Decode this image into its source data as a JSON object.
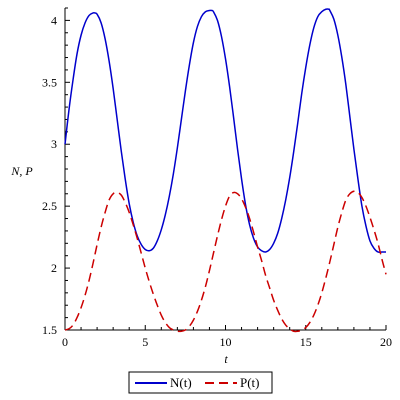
{
  "chart_data": {
    "type": "line",
    "xlabel": "t",
    "ylabel": "N, P",
    "xlim": [
      0,
      20
    ],
    "ylim": [
      1.5,
      4.1
    ],
    "x_ticks": [
      "0",
      "5",
      "10",
      "15",
      "20"
    ],
    "y_ticks": [
      "1.5",
      "2",
      "2.5",
      "3",
      "3.5",
      "4"
    ],
    "grid": false,
    "legend_position": "bottom",
    "series": [
      {
        "name": "N(t)",
        "color": "#0000cc",
        "dash": "solid",
        "x": [
          0,
          0.25,
          0.5,
          0.75,
          1,
          1.25,
          1.5,
          1.75,
          1.85,
          2,
          2.25,
          2.5,
          2.75,
          3,
          3.25,
          3.5,
          3.75,
          4,
          4.25,
          4.5,
          4.75,
          5,
          5.25,
          5.5,
          5.75,
          6,
          6.25,
          6.5,
          6.75,
          7,
          7.25,
          7.5,
          7.75,
          8,
          8.25,
          8.5,
          8.75,
          9,
          9.15,
          9.25,
          9.5,
          9.75,
          10,
          10.25,
          10.5,
          10.75,
          11,
          11.25,
          11.5,
          11.75,
          12,
          12.25,
          12.5,
          12.75,
          13,
          13.25,
          13.5,
          13.75,
          14,
          14.25,
          14.5,
          14.75,
          15,
          15.25,
          15.5,
          15.75,
          16,
          16.25,
          16.45,
          16.5,
          16.75,
          17,
          17.25,
          17.5,
          17.75,
          18,
          18.25,
          18.5,
          18.75,
          19,
          19.25,
          19.5,
          19.75,
          20
        ],
        "y": [
          3.0,
          3.28,
          3.52,
          3.73,
          3.88,
          3.98,
          4.04,
          4.06,
          4.06,
          4.05,
          3.98,
          3.85,
          3.67,
          3.45,
          3.2,
          2.95,
          2.72,
          2.52,
          2.37,
          2.26,
          2.19,
          2.15,
          2.14,
          2.16,
          2.22,
          2.31,
          2.43,
          2.58,
          2.76,
          2.97,
          3.2,
          3.43,
          3.64,
          3.82,
          3.95,
          4.03,
          4.07,
          4.08,
          4.08,
          4.07,
          4.0,
          3.87,
          3.69,
          3.47,
          3.22,
          2.96,
          2.72,
          2.51,
          2.35,
          2.24,
          2.17,
          2.14,
          2.13,
          2.15,
          2.2,
          2.28,
          2.4,
          2.55,
          2.73,
          2.94,
          3.17,
          3.41,
          3.62,
          3.8,
          3.94,
          4.03,
          4.07,
          4.09,
          4.09,
          4.08,
          4.01,
          3.88,
          3.7,
          3.48,
          3.22,
          2.96,
          2.72,
          2.5,
          2.34,
          2.22,
          2.16,
          2.13,
          2.13,
          2.13
        ]
      },
      {
        "name": "P(t)",
        "color": "#cc0000",
        "dash": "dashed",
        "x": [
          0,
          0.25,
          0.5,
          0.75,
          1,
          1.25,
          1.5,
          1.75,
          2,
          2.25,
          2.5,
          2.75,
          3,
          3.25,
          3.5,
          3.75,
          4,
          4.25,
          4.5,
          4.75,
          5,
          5.25,
          5.5,
          5.75,
          6,
          6.25,
          6.5,
          6.75,
          7,
          7.25,
          7.5,
          7.75,
          8,
          8.25,
          8.5,
          8.75,
          9,
          9.25,
          9.5,
          9.75,
          10,
          10.25,
          10.5,
          10.75,
          11,
          11.25,
          11.5,
          11.75,
          12,
          12.25,
          12.5,
          12.75,
          13,
          13.25,
          13.5,
          13.75,
          14,
          14.25,
          14.5,
          14.75,
          15,
          15.25,
          15.5,
          15.75,
          16,
          16.25,
          16.5,
          16.75,
          17,
          17.25,
          17.5,
          17.75,
          18,
          18.25,
          18.5,
          18.75,
          19,
          19.25,
          19.5,
          19.75,
          20
        ],
        "y": [
          1.5,
          1.51,
          1.54,
          1.6,
          1.68,
          1.78,
          1.9,
          2.04,
          2.19,
          2.33,
          2.45,
          2.55,
          2.6,
          2.61,
          2.59,
          2.53,
          2.45,
          2.35,
          2.24,
          2.12,
          2.0,
          1.89,
          1.79,
          1.7,
          1.62,
          1.56,
          1.52,
          1.5,
          1.49,
          1.49,
          1.5,
          1.53,
          1.58,
          1.65,
          1.74,
          1.85,
          1.98,
          2.12,
          2.26,
          2.39,
          2.5,
          2.58,
          2.61,
          2.6,
          2.56,
          2.49,
          2.4,
          2.29,
          2.17,
          2.06,
          1.94,
          1.84,
          1.74,
          1.66,
          1.59,
          1.54,
          1.51,
          1.49,
          1.49,
          1.5,
          1.52,
          1.56,
          1.62,
          1.7,
          1.8,
          1.92,
          2.05,
          2.19,
          2.33,
          2.45,
          2.55,
          2.6,
          2.62,
          2.61,
          2.57,
          2.5,
          2.41,
          2.31,
          2.2,
          2.07,
          1.95
        ]
      }
    ]
  }
}
